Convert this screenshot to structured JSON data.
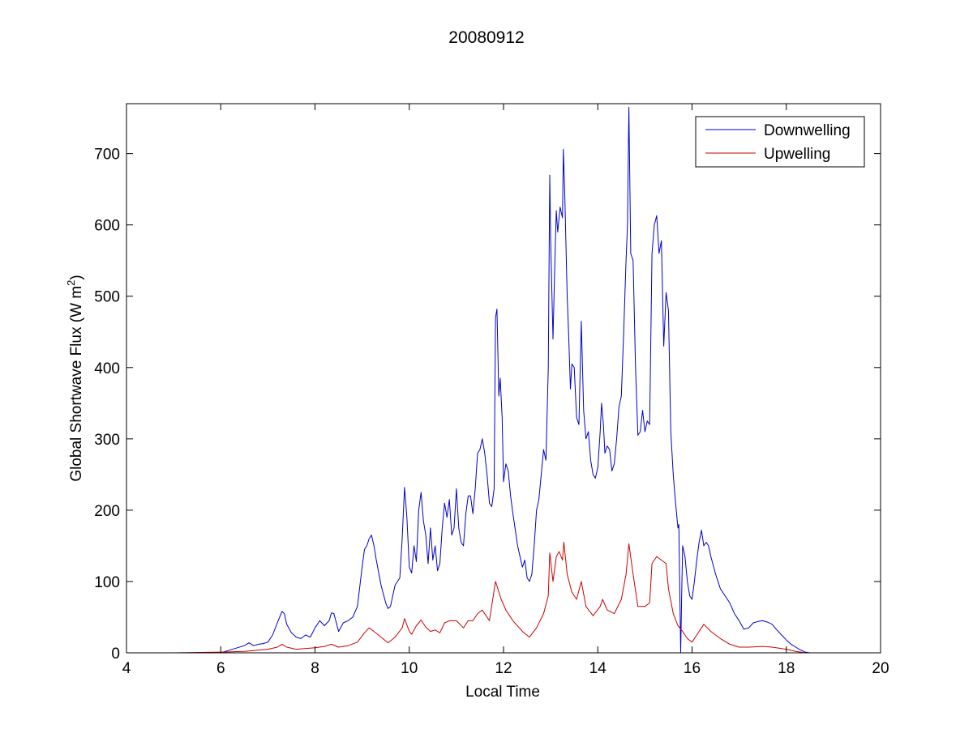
{
  "chart_data": {
    "type": "line",
    "title": "20080912",
    "xlabel": "Local Time",
    "ylabel": "Global Shortwave Flux (W m",
    "ylabel_sup": "2",
    "ylabel_close": ")",
    "xlim": [
      4,
      20
    ],
    "ylim": [
      0,
      770
    ],
    "xticks": [
      4,
      6,
      8,
      10,
      12,
      14,
      16,
      18,
      20
    ],
    "yticks": [
      0,
      100,
      200,
      300,
      400,
      500,
      600,
      700
    ],
    "grid": false,
    "legend_position": "top-right",
    "series": [
      {
        "name": "Downwelling",
        "color": "#0000cc",
        "points": [
          [
            4.0,
            0
          ],
          [
            5.0,
            0
          ],
          [
            6.0,
            0
          ],
          [
            6.1,
            2
          ],
          [
            6.3,
            6
          ],
          [
            6.5,
            10
          ],
          [
            6.6,
            14
          ],
          [
            6.7,
            10
          ],
          [
            6.8,
            12
          ],
          [
            6.9,
            13
          ],
          [
            7.0,
            15
          ],
          [
            7.1,
            25
          ],
          [
            7.2,
            42
          ],
          [
            7.3,
            58
          ],
          [
            7.35,
            55
          ],
          [
            7.4,
            40
          ],
          [
            7.5,
            28
          ],
          [
            7.6,
            22
          ],
          [
            7.7,
            20
          ],
          [
            7.8,
            25
          ],
          [
            7.9,
            22
          ],
          [
            8.0,
            35
          ],
          [
            8.1,
            45
          ],
          [
            8.2,
            38
          ],
          [
            8.3,
            45
          ],
          [
            8.35,
            56
          ],
          [
            8.4,
            55
          ],
          [
            8.5,
            30
          ],
          [
            8.6,
            42
          ],
          [
            8.7,
            45
          ],
          [
            8.8,
            50
          ],
          [
            8.9,
            65
          ],
          [
            9.0,
            120
          ],
          [
            9.05,
            145
          ],
          [
            9.1,
            150
          ],
          [
            9.15,
            160
          ],
          [
            9.2,
            165
          ],
          [
            9.25,
            150
          ],
          [
            9.3,
            130
          ],
          [
            9.4,
            95
          ],
          [
            9.5,
            70
          ],
          [
            9.55,
            62
          ],
          [
            9.6,
            65
          ],
          [
            9.7,
            95
          ],
          [
            9.8,
            105
          ],
          [
            9.85,
            160
          ],
          [
            9.9,
            232
          ],
          [
            9.95,
            190
          ],
          [
            10.0,
            120
          ],
          [
            10.05,
            112
          ],
          [
            10.1,
            150
          ],
          [
            10.15,
            128
          ],
          [
            10.2,
            200
          ],
          [
            10.25,
            225
          ],
          [
            10.3,
            185
          ],
          [
            10.35,
            165
          ],
          [
            10.4,
            125
          ],
          [
            10.45,
            175
          ],
          [
            10.5,
            130
          ],
          [
            10.55,
            150
          ],
          [
            10.6,
            115
          ],
          [
            10.65,
            125
          ],
          [
            10.7,
            175
          ],
          [
            10.75,
            210
          ],
          [
            10.8,
            190
          ],
          [
            10.85,
            215
          ],
          [
            10.9,
            165
          ],
          [
            10.95,
            175
          ],
          [
            11.0,
            230
          ],
          [
            11.05,
            175
          ],
          [
            11.1,
            155
          ],
          [
            11.15,
            150
          ],
          [
            11.2,
            195
          ],
          [
            11.25,
            220
          ],
          [
            11.3,
            220
          ],
          [
            11.35,
            195
          ],
          [
            11.4,
            230
          ],
          [
            11.45,
            280
          ],
          [
            11.5,
            285
          ],
          [
            11.55,
            300
          ],
          [
            11.6,
            280
          ],
          [
            11.65,
            250
          ],
          [
            11.7,
            210
          ],
          [
            11.75,
            205
          ],
          [
            11.8,
            230
          ],
          [
            11.83,
            470
          ],
          [
            11.86,
            482
          ],
          [
            11.9,
            360
          ],
          [
            11.93,
            385
          ],
          [
            11.97,
            330
          ],
          [
            12.0,
            240
          ],
          [
            12.05,
            265
          ],
          [
            12.1,
            255
          ],
          [
            12.15,
            220
          ],
          [
            12.2,
            195
          ],
          [
            12.3,
            150
          ],
          [
            12.35,
            135
          ],
          [
            12.4,
            120
          ],
          [
            12.45,
            130
          ],
          [
            12.5,
            105
          ],
          [
            12.55,
            100
          ],
          [
            12.6,
            110
          ],
          [
            12.65,
            150
          ],
          [
            12.7,
            200
          ],
          [
            12.75,
            215
          ],
          [
            12.8,
            250
          ],
          [
            12.85,
            285
          ],
          [
            12.9,
            270
          ],
          [
            12.95,
            400
          ],
          [
            12.98,
            670
          ],
          [
            13.0,
            580
          ],
          [
            13.05,
            440
          ],
          [
            13.1,
            575
          ],
          [
            13.12,
            620
          ],
          [
            13.15,
            590
          ],
          [
            13.2,
            625
          ],
          [
            13.25,
            610
          ],
          [
            13.27,
            706
          ],
          [
            13.3,
            640
          ],
          [
            13.35,
            500
          ],
          [
            13.38,
            450
          ],
          [
            13.42,
            370
          ],
          [
            13.45,
            405
          ],
          [
            13.5,
            400
          ],
          [
            13.55,
            330
          ],
          [
            13.6,
            320
          ],
          [
            13.65,
            465
          ],
          [
            13.7,
            340
          ],
          [
            13.75,
            300
          ],
          [
            13.8,
            310
          ],
          [
            13.85,
            270
          ],
          [
            13.9,
            250
          ],
          [
            13.95,
            245
          ],
          [
            14.0,
            260
          ],
          [
            14.05,
            310
          ],
          [
            14.08,
            350
          ],
          [
            14.12,
            320
          ],
          [
            14.15,
            280
          ],
          [
            14.2,
            290
          ],
          [
            14.25,
            285
          ],
          [
            14.3,
            255
          ],
          [
            14.35,
            265
          ],
          [
            14.4,
            300
          ],
          [
            14.45,
            345
          ],
          [
            14.5,
            360
          ],
          [
            14.55,
            450
          ],
          [
            14.6,
            550
          ],
          [
            14.63,
            600
          ],
          [
            14.66,
            765
          ],
          [
            14.7,
            560
          ],
          [
            14.75,
            550
          ],
          [
            14.8,
            400
          ],
          [
            14.85,
            305
          ],
          [
            14.9,
            310
          ],
          [
            14.95,
            340
          ],
          [
            15.0,
            310
          ],
          [
            15.05,
            325
          ],
          [
            15.1,
            320
          ],
          [
            15.15,
            560
          ],
          [
            15.2,
            600
          ],
          [
            15.25,
            613
          ],
          [
            15.3,
            560
          ],
          [
            15.35,
            578
          ],
          [
            15.4,
            430
          ],
          [
            15.45,
            505
          ],
          [
            15.5,
            480
          ],
          [
            15.55,
            310
          ],
          [
            15.6,
            250
          ],
          [
            15.65,
            210
          ],
          [
            15.7,
            175
          ],
          [
            15.72,
            180
          ],
          [
            15.76,
            0
          ],
          [
            15.78,
            80
          ],
          [
            15.8,
            150
          ],
          [
            15.85,
            135
          ],
          [
            15.9,
            100
          ],
          [
            15.95,
            80
          ],
          [
            16.0,
            75
          ],
          [
            16.05,
            100
          ],
          [
            16.1,
            130
          ],
          [
            16.15,
            155
          ],
          [
            16.2,
            172
          ],
          [
            16.25,
            150
          ],
          [
            16.3,
            155
          ],
          [
            16.35,
            150
          ],
          [
            16.4,
            135
          ],
          [
            16.5,
            110
          ],
          [
            16.6,
            90
          ],
          [
            16.7,
            80
          ],
          [
            16.8,
            70
          ],
          [
            16.9,
            55
          ],
          [
            17.0,
            45
          ],
          [
            17.1,
            33
          ],
          [
            17.2,
            35
          ],
          [
            17.3,
            42
          ],
          [
            17.4,
            44
          ],
          [
            17.5,
            45
          ],
          [
            17.6,
            43
          ],
          [
            17.7,
            40
          ],
          [
            17.8,
            32
          ],
          [
            17.9,
            25
          ],
          [
            18.0,
            18
          ],
          [
            18.1,
            12
          ],
          [
            18.2,
            8
          ],
          [
            18.3,
            4
          ],
          [
            18.4,
            1
          ],
          [
            18.5,
            0
          ]
        ]
      },
      {
        "name": "Upwelling",
        "color": "#cc0000",
        "points": [
          [
            4.0,
            0
          ],
          [
            5.0,
            0
          ],
          [
            6.0,
            1
          ],
          [
            6.5,
            2
          ],
          [
            7.0,
            5
          ],
          [
            7.2,
            8
          ],
          [
            7.3,
            12
          ],
          [
            7.4,
            8
          ],
          [
            7.6,
            5
          ],
          [
            8.0,
            7
          ],
          [
            8.2,
            9
          ],
          [
            8.35,
            12
          ],
          [
            8.5,
            8
          ],
          [
            8.7,
            10
          ],
          [
            8.9,
            15
          ],
          [
            9.05,
            28
          ],
          [
            9.15,
            35
          ],
          [
            9.25,
            30
          ],
          [
            9.4,
            22
          ],
          [
            9.55,
            14
          ],
          [
            9.7,
            22
          ],
          [
            9.85,
            35
          ],
          [
            9.9,
            48
          ],
          [
            10.0,
            30
          ],
          [
            10.05,
            26
          ],
          [
            10.15,
            38
          ],
          [
            10.25,
            46
          ],
          [
            10.35,
            36
          ],
          [
            10.45,
            30
          ],
          [
            10.55,
            32
          ],
          [
            10.65,
            28
          ],
          [
            10.75,
            42
          ],
          [
            10.85,
            45
          ],
          [
            11.0,
            45
          ],
          [
            11.15,
            35
          ],
          [
            11.25,
            45
          ],
          [
            11.35,
            45
          ],
          [
            11.45,
            55
          ],
          [
            11.55,
            60
          ],
          [
            11.7,
            45
          ],
          [
            11.83,
            100
          ],
          [
            11.88,
            90
          ],
          [
            11.95,
            75
          ],
          [
            12.05,
            60
          ],
          [
            12.2,
            45
          ],
          [
            12.4,
            30
          ],
          [
            12.55,
            22
          ],
          [
            12.7,
            35
          ],
          [
            12.85,
            55
          ],
          [
            12.95,
            80
          ],
          [
            12.98,
            140
          ],
          [
            13.05,
            100
          ],
          [
            13.12,
            135
          ],
          [
            13.18,
            142
          ],
          [
            13.25,
            130
          ],
          [
            13.28,
            155
          ],
          [
            13.35,
            110
          ],
          [
            13.45,
            85
          ],
          [
            13.55,
            75
          ],
          [
            13.65,
            100
          ],
          [
            13.75,
            65
          ],
          [
            13.9,
            52
          ],
          [
            14.05,
            65
          ],
          [
            14.1,
            75
          ],
          [
            14.2,
            60
          ],
          [
            14.35,
            55
          ],
          [
            14.5,
            75
          ],
          [
            14.6,
            110
          ],
          [
            14.66,
            153
          ],
          [
            14.75,
            110
          ],
          [
            14.85,
            65
          ],
          [
            15.0,
            65
          ],
          [
            15.1,
            70
          ],
          [
            15.15,
            125
          ],
          [
            15.25,
            135
          ],
          [
            15.35,
            130
          ],
          [
            15.45,
            125
          ],
          [
            15.5,
            90
          ],
          [
            15.6,
            55
          ],
          [
            15.7,
            38
          ],
          [
            15.8,
            30
          ],
          [
            15.9,
            20
          ],
          [
            16.0,
            15
          ],
          [
            16.1,
            25
          ],
          [
            16.2,
            35
          ],
          [
            16.25,
            40
          ],
          [
            16.4,
            30
          ],
          [
            16.6,
            20
          ],
          [
            16.8,
            12
          ],
          [
            17.0,
            8
          ],
          [
            17.2,
            8
          ],
          [
            17.5,
            9
          ],
          [
            17.7,
            8
          ],
          [
            18.0,
            5
          ],
          [
            18.2,
            2
          ],
          [
            18.4,
            0
          ]
        ]
      }
    ]
  }
}
